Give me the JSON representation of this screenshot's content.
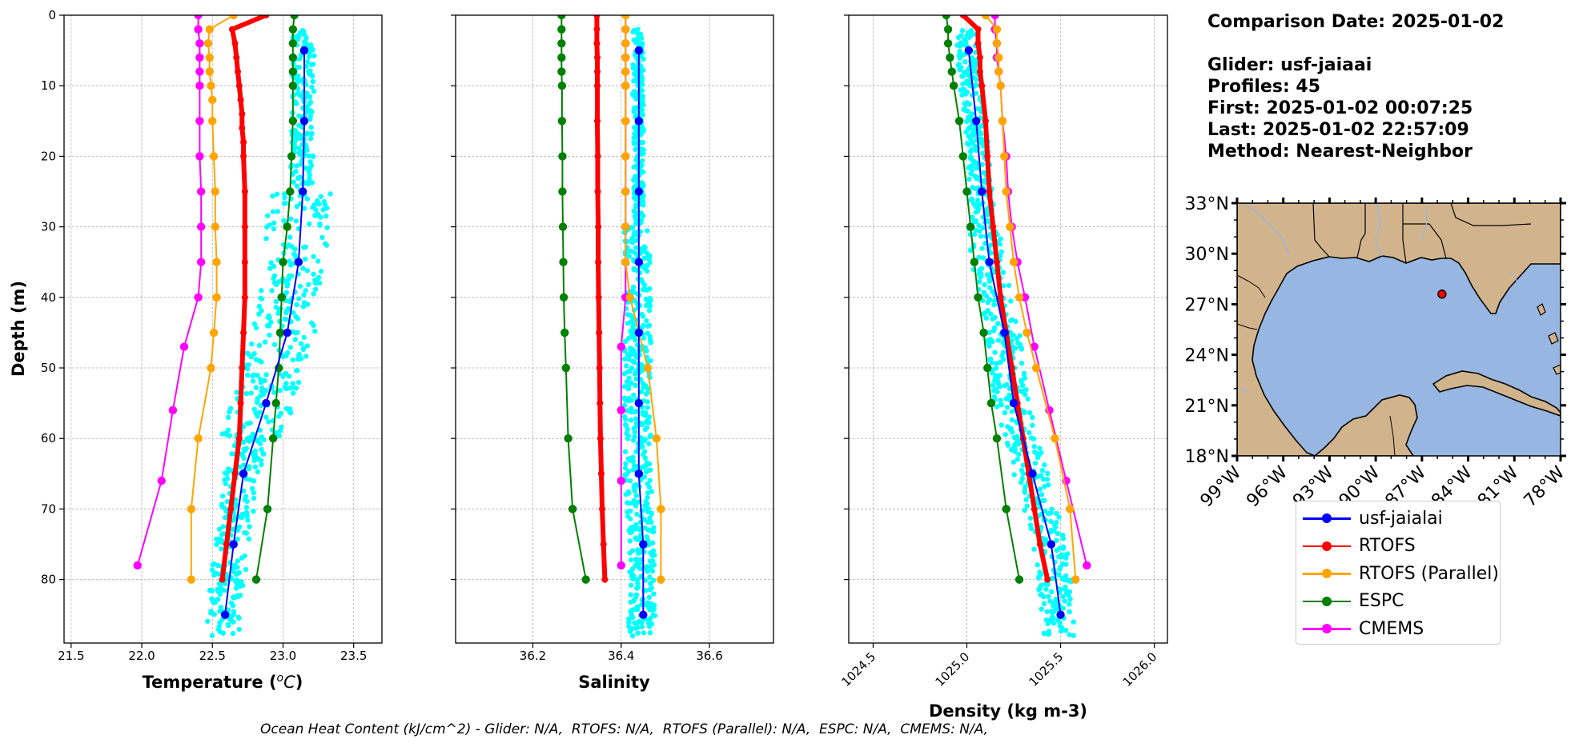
{
  "info": {
    "comparison_date": "Comparison Date: 2025-01-02",
    "glider": "Glider: usf-jaiaai",
    "profiles": "Profiles: 45",
    "first": "First: 2025-01-02 00:07:25",
    "last": "Last: 2025-01-02 22:57:09",
    "method": "Method: Nearest-Neighbor"
  },
  "footer": "Ocean Heat Content (kJ/cm^2) - Glider: N/A,  RTOFS: N/A,  RTOFS (Parallel): N/A,  ESPC: N/A,  CMEMS: N/A,",
  "legend": [
    {
      "name": "usf-jaialai",
      "color": "#0000ff"
    },
    {
      "name": "RTOFS",
      "color": "#ff0000"
    },
    {
      "name": "RTOFS (Parallel)",
      "color": "#ffa500"
    },
    {
      "name": "ESPC",
      "color": "#008000"
    },
    {
      "name": "CMEMS",
      "color": "#ff00ff"
    }
  ],
  "colors": {
    "glider": "#0000ff",
    "glider_points": "#00ffff",
    "rtofs": "#ff0000",
    "rtofs_parallel": "#ffa500",
    "espc": "#008000",
    "cmems": "#ff00ff",
    "land": "#d2b48c",
    "ocean": "#97b6e1"
  },
  "map": {
    "lat_ticks": [
      "33°N",
      "30°N",
      "27°N",
      "24°N",
      "21°N",
      "18°N"
    ],
    "lon_ticks": [
      "99°W",
      "96°W",
      "93°W",
      "90°W",
      "87°W",
      "84°W",
      "81°W",
      "78°W"
    ],
    "lat_range": [
      18,
      33
    ],
    "lon_range": [
      -99,
      -78
    ],
    "glider_position": {
      "lon": -85.7,
      "lat": 27.6
    }
  },
  "chart_data": [
    {
      "type": "line",
      "xlabel": "Temperature (°C)",
      "ylabel": "Depth (m)",
      "xlim": [
        21.45,
        23.7
      ],
      "ylim": [
        89,
        0
      ],
      "xticks": [
        "21.5",
        "22.0",
        "22.5",
        "23.0",
        "23.5"
      ],
      "xtick_values": [
        21.5,
        22.0,
        22.5,
        23.0,
        23.5
      ],
      "yticks": [
        "0",
        "10",
        "20",
        "30",
        "40",
        "50",
        "60",
        "70",
        "80"
      ],
      "grid": true,
      "series": [
        {
          "name": "usf-jaialai",
          "depth": [
            5,
            15,
            25,
            35,
            45,
            55,
            65,
            75,
            85
          ],
          "values": [
            23.15,
            23.15,
            23.14,
            23.11,
            23.03,
            22.88,
            22.72,
            22.65,
            22.59
          ]
        },
        {
          "name": "RTOFS",
          "depth": [
            0,
            2,
            4,
            6,
            8,
            10,
            12,
            14,
            16,
            18,
            20,
            25,
            30,
            35,
            40,
            45,
            50,
            55,
            60,
            65,
            70,
            75,
            80
          ],
          "values": [
            22.88,
            22.64,
            22.66,
            22.67,
            22.68,
            22.69,
            22.7,
            22.71,
            22.71,
            22.72,
            22.72,
            22.73,
            22.73,
            22.73,
            22.73,
            22.72,
            22.71,
            22.7,
            22.69,
            22.66,
            22.63,
            22.6,
            22.57
          ]
        },
        {
          "name": "RTOFS (Parallel)",
          "depth": [
            0,
            2,
            4,
            6,
            8,
            10,
            12,
            15,
            20,
            25,
            30,
            35,
            40,
            45,
            50,
            60,
            70,
            80
          ],
          "values": [
            22.65,
            22.48,
            22.47,
            22.48,
            22.48,
            22.49,
            22.5,
            22.5,
            22.51,
            22.52,
            22.52,
            22.53,
            22.53,
            22.51,
            22.49,
            22.4,
            22.35,
            22.35
          ]
        },
        {
          "name": "ESPC",
          "depth": [
            0,
            2,
            4,
            6,
            8,
            10,
            15,
            20,
            25,
            30,
            35,
            40,
            45,
            50,
            55,
            60,
            70,
            80
          ],
          "values": [
            23.08,
            23.07,
            23.07,
            23.07,
            23.07,
            23.07,
            23.07,
            23.06,
            23.05,
            23.03,
            23.0,
            22.99,
            22.98,
            22.97,
            22.95,
            22.93,
            22.89,
            22.81
          ]
        },
        {
          "name": "CMEMS",
          "depth": [
            0,
            2,
            4,
            6,
            8,
            10,
            15,
            20,
            25,
            30,
            35,
            40,
            47,
            56,
            66,
            78
          ],
          "values": [
            22.4,
            22.4,
            22.41,
            22.41,
            22.41,
            22.41,
            22.41,
            22.41,
            22.42,
            22.42,
            22.42,
            22.4,
            22.3,
            22.22,
            22.14,
            21.97
          ]
        }
      ]
    },
    {
      "type": "line",
      "xlabel": "Salinity",
      "xlim": [
        36.025,
        36.745
      ],
      "ylim": [
        89,
        0
      ],
      "xticks": [
        "36.2",
        "36.4",
        "36.6"
      ],
      "xtick_values": [
        36.2,
        36.4,
        36.6
      ],
      "grid": true,
      "series": [
        {
          "name": "usf-jaialai",
          "depth": [
            5,
            15,
            25,
            35,
            45,
            55,
            65,
            75,
            85
          ],
          "values": [
            36.44,
            36.44,
            36.44,
            36.44,
            36.44,
            36.44,
            36.44,
            36.45,
            36.45
          ]
        },
        {
          "name": "RTOFS",
          "depth": [
            0,
            2,
            4,
            6,
            8,
            10,
            15,
            20,
            25,
            30,
            35,
            40,
            45,
            50,
            55,
            60,
            65,
            70,
            75,
            80
          ],
          "values": [
            36.345,
            36.345,
            36.345,
            36.346,
            36.346,
            36.346,
            36.346,
            36.347,
            36.347,
            36.348,
            36.348,
            36.349,
            36.35,
            36.351,
            36.352,
            36.353,
            36.355,
            36.357,
            36.36,
            36.363
          ]
        },
        {
          "name": "RTOFS (Parallel)",
          "depth": [
            0,
            2,
            4,
            6,
            8,
            10,
            15,
            20,
            25,
            30,
            35,
            40,
            45,
            50,
            60,
            70,
            80
          ],
          "values": [
            36.41,
            36.41,
            36.41,
            36.41,
            36.41,
            36.41,
            36.41,
            36.41,
            36.41,
            36.41,
            36.41,
            36.42,
            36.44,
            36.46,
            36.48,
            36.49,
            36.49
          ]
        },
        {
          "name": "ESPC",
          "depth": [
            0,
            2,
            4,
            6,
            8,
            10,
            15,
            20,
            25,
            30,
            35,
            40,
            45,
            50,
            60,
            70,
            80
          ],
          "values": [
            36.265,
            36.265,
            36.265,
            36.265,
            36.265,
            36.266,
            36.266,
            36.267,
            36.267,
            36.268,
            36.269,
            36.27,
            36.272,
            36.275,
            36.28,
            36.29,
            36.32
          ]
        },
        {
          "name": "CMEMS",
          "depth": [
            0,
            2,
            4,
            6,
            8,
            10,
            15,
            20,
            25,
            30,
            35,
            40,
            47,
            56,
            66,
            78
          ],
          "values": [
            36.41,
            36.41,
            36.41,
            36.41,
            36.41,
            36.41,
            36.41,
            36.41,
            36.41,
            36.41,
            36.41,
            36.41,
            36.4,
            36.4,
            36.4,
            36.4
          ]
        }
      ]
    },
    {
      "type": "line",
      "xlabel": "Density (kg m-3)",
      "xlim": [
        1024.37,
        1026.07
      ],
      "ylim": [
        89,
        0
      ],
      "xticks": [
        "1024.5",
        "1025.0",
        "1025.5",
        "1026.0"
      ],
      "xtick_values": [
        1024.5,
        1025.0,
        1025.5,
        1026.0
      ],
      "grid": true,
      "series": [
        {
          "name": "usf-jaialai",
          "depth": [
            5,
            15,
            25,
            35,
            45,
            55,
            65,
            75,
            85
          ],
          "values": [
            1025.01,
            1025.05,
            1025.08,
            1025.12,
            1025.2,
            1025.25,
            1025.35,
            1025.45,
            1025.5
          ]
        },
        {
          "name": "RTOFS",
          "depth": [
            0,
            2,
            4,
            6,
            8,
            10,
            15,
            20,
            25,
            30,
            35,
            40,
            45,
            50,
            55,
            60,
            65,
            70,
            75,
            80
          ],
          "values": [
            1024.98,
            1025.06,
            1025.06,
            1025.07,
            1025.07,
            1025.08,
            1025.1,
            1025.11,
            1025.12,
            1025.14,
            1025.16,
            1025.18,
            1025.21,
            1025.24,
            1025.27,
            1025.3,
            1025.33,
            1025.36,
            1025.39,
            1025.43
          ]
        },
        {
          "name": "RTOFS (Parallel)",
          "depth": [
            0,
            2,
            4,
            6,
            8,
            10,
            15,
            20,
            25,
            30,
            35,
            40,
            45,
            50,
            60,
            70,
            80
          ],
          "values": [
            1025.1,
            1025.16,
            1025.16,
            1025.17,
            1025.17,
            1025.18,
            1025.19,
            1025.2,
            1025.21,
            1025.23,
            1025.25,
            1025.28,
            1025.32,
            1025.37,
            1025.47,
            1025.55,
            1025.58
          ]
        },
        {
          "name": "ESPC",
          "depth": [
            0,
            2,
            4,
            6,
            8,
            10,
            15,
            20,
            25,
            30,
            35,
            40,
            45,
            50,
            55,
            60,
            70,
            80
          ],
          "values": [
            1024.89,
            1024.9,
            1024.9,
            1024.91,
            1024.92,
            1024.93,
            1024.96,
            1024.98,
            1025.0,
            1025.02,
            1025.04,
            1025.06,
            1025.09,
            1025.11,
            1025.13,
            1025.16,
            1025.21,
            1025.28
          ]
        },
        {
          "name": "CMEMS",
          "depth": [
            0,
            2,
            4,
            6,
            8,
            10,
            15,
            20,
            25,
            30,
            35,
            40,
            47,
            56,
            66,
            78
          ],
          "values": [
            1025.15,
            1025.15,
            1025.16,
            1025.16,
            1025.17,
            1025.18,
            1025.19,
            1025.21,
            1025.22,
            1025.24,
            1025.27,
            1025.31,
            1025.36,
            1025.44,
            1025.53,
            1025.64
          ]
        }
      ]
    }
  ]
}
